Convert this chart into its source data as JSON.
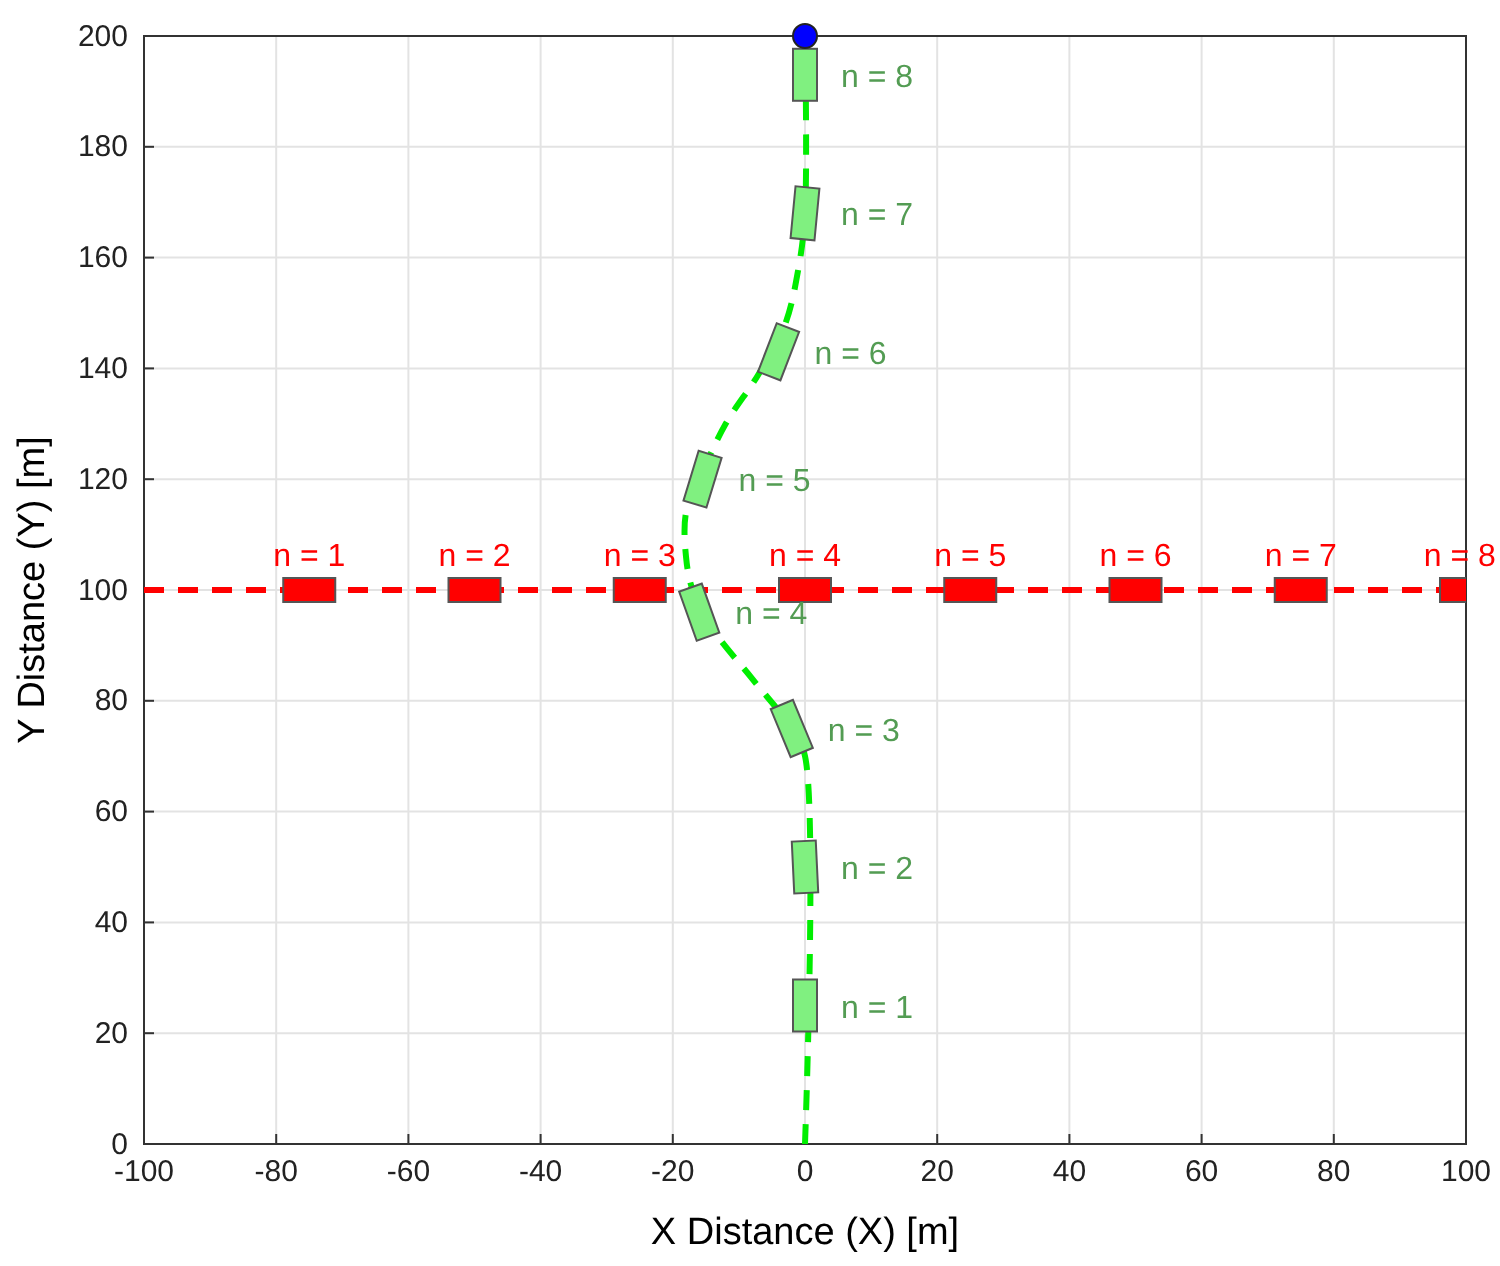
{
  "chart_data": {
    "type": "line",
    "xlabel": "X Distance (X) [m]",
    "ylabel": "Y Distance (Y) [m]",
    "xlim": [
      -100,
      100
    ],
    "xticks": [
      -100,
      -80,
      -60,
      -40,
      -20,
      0,
      20,
      40,
      60,
      80,
      100
    ],
    "ylim": [
      0,
      200
    ],
    "yticks": [
      0,
      20,
      40,
      60,
      80,
      100,
      120,
      140,
      160,
      180,
      200
    ],
    "grid": true,
    "series": [
      {
        "color": "#ff0000",
        "line_style": "dashed",
        "marker": "none",
        "x": [
          -100,
          100
        ],
        "values": [
          100,
          100
        ]
      },
      {
        "color": "#00ee00",
        "line_style": "dashed",
        "marker": "none",
        "x": [
          0,
          0,
          -2,
          -8,
          -14,
          -17,
          -18,
          -18,
          -16,
          -12,
          -7,
          -3,
          -1,
          0,
          0
        ],
        "values": [
          0,
          70,
          75,
          84,
          93,
          100,
          106,
          114,
          120,
          130,
          139,
          148,
          158,
          168,
          200
        ]
      },
      {
        "type": "scatter",
        "color": "#ff0000",
        "marker": "square",
        "x": [
          -75,
          -50,
          -25,
          0,
          25,
          50,
          75,
          100
        ],
        "values": [
          100,
          100,
          100,
          100,
          100,
          100,
          100,
          100
        ]
      },
      {
        "type": "scatter",
        "color": "#80f080",
        "marker": "square",
        "x": [
          0,
          0,
          -2,
          -16,
          -15.5,
          -4,
          0,
          0
        ],
        "values": [
          25,
          50,
          75,
          96,
          120,
          143,
          168,
          193
        ]
      },
      {
        "type": "scatter",
        "color": "#0000ff",
        "marker": "circle",
        "x": [
          0
        ],
        "values": [
          200
        ]
      }
    ],
    "annotations": [
      {
        "text": "n = 1",
        "x": -75,
        "y": 100
      },
      {
        "text": "n = 2",
        "x": -50,
        "y": 100
      },
      {
        "text": "n = 3",
        "x": -25,
        "y": 100
      },
      {
        "text": "n = 4",
        "x": 0,
        "y": 100
      },
      {
        "text": "n = 5",
        "x": 25,
        "y": 100
      },
      {
        "text": "n = 6",
        "x": 50,
        "y": 100
      },
      {
        "text": "n = 7",
        "x": 75,
        "y": 100
      },
      {
        "text": "n = 8",
        "x": 100,
        "y": 100
      },
      {
        "text": "n = 1",
        "x": 0,
        "y": 25
      },
      {
        "text": "n = 2",
        "x": 0,
        "y": 50
      },
      {
        "text": "n = 3",
        "x": -2,
        "y": 75
      },
      {
        "text": "n = 4",
        "x": -16,
        "y": 96
      },
      {
        "text": "n = 5",
        "x": -15.5,
        "y": 120
      },
      {
        "text": "n = 6",
        "x": -4,
        "y": 143
      },
      {
        "text": "n = 7",
        "x": 0,
        "y": 168
      },
      {
        "text": "n = 8",
        "x": 0,
        "y": 193
      }
    ]
  }
}
